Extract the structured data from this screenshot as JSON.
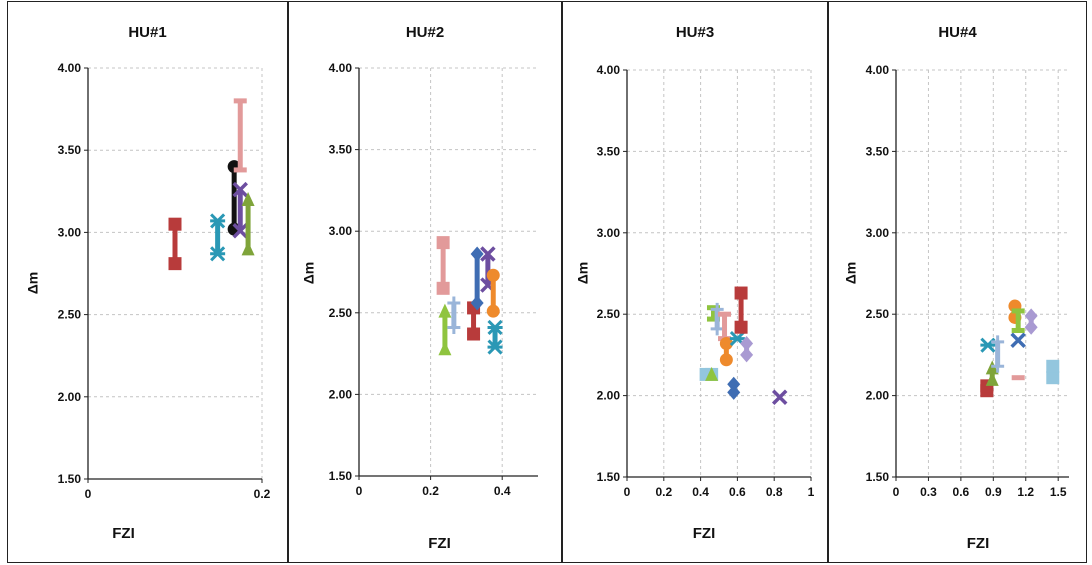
{
  "colors": {
    "red": "#b83b3b",
    "teal": "#2a98b5",
    "black": "#111111",
    "pink": "#e29a9a",
    "purple": "#6d4ea0",
    "olive": "#7fa43a",
    "green": "#8fc43f",
    "lightblue": "#9ab5d9",
    "blue": "#3f6db3",
    "orange": "#ee8a2c",
    "lavender": "#a99ad2",
    "sky": "#93c6de",
    "grid": "#c4c4c4"
  },
  "chart_data": [
    {
      "type": "scatter",
      "title": "HU#1",
      "xlabel": "FZI",
      "ylabel": "Δm",
      "xlim": [
        0,
        0.2
      ],
      "ylim": [
        1.5,
        4.0
      ],
      "xticks": [
        0,
        0.2
      ],
      "xtick_labels": [
        "0",
        "0.2"
      ],
      "yticks": [
        1.5,
        2.0,
        2.5,
        3.0,
        3.5,
        4.0
      ],
      "ytick_labels": [
        "1.50",
        "2.00",
        "2.50",
        "3.00",
        "3.50",
        "4.00"
      ],
      "grid": "dashed",
      "series": [
        {
          "marker": "square",
          "color": "red",
          "points": [
            [
              0.1,
              2.81
            ],
            [
              0.1,
              3.05
            ]
          ]
        },
        {
          "marker": "asterisk",
          "color": "teal",
          "points": [
            [
              0.149,
              2.87
            ],
            [
              0.149,
              3.07
            ]
          ]
        },
        {
          "marker": "circle",
          "color": "black",
          "points": [
            [
              0.168,
              3.02
            ],
            [
              0.168,
              3.4
            ]
          ]
        },
        {
          "marker": "dash",
          "color": "pink",
          "points": [
            [
              0.175,
              3.38
            ],
            [
              0.175,
              3.8
            ]
          ]
        },
        {
          "marker": "x",
          "color": "purple",
          "points": [
            [
              0.175,
              3.01
            ],
            [
              0.175,
              3.26
            ]
          ]
        },
        {
          "marker": "triangle",
          "color": "olive",
          "points": [
            [
              0.184,
              2.9
            ],
            [
              0.184,
              3.2
            ]
          ]
        }
      ]
    },
    {
      "type": "scatter",
      "title": "HU#2",
      "xlabel": "FZI",
      "ylabel": "Δm",
      "xlim": [
        0,
        0.5
      ],
      "ylim": [
        1.5,
        4.0
      ],
      "xticks": [
        0,
        0.2,
        0.4
      ],
      "xtick_labels": [
        "0",
        "0.2",
        "0.4"
      ],
      "yticks": [
        1.5,
        2.0,
        2.5,
        3.0,
        3.5,
        4.0
      ],
      "ytick_labels": [
        "1.50",
        "2.00",
        "2.50",
        "3.00",
        "3.50",
        "4.00"
      ],
      "grid": "dashed",
      "series": [
        {
          "marker": "square",
          "color": "pink",
          "points": [
            [
              0.235,
              2.65
            ],
            [
              0.235,
              2.93
            ]
          ]
        },
        {
          "marker": "triangle",
          "color": "green",
          "points": [
            [
              0.24,
              2.28
            ],
            [
              0.24,
              2.51
            ]
          ]
        },
        {
          "marker": "plus",
          "color": "lightblue",
          "points": [
            [
              0.265,
              2.41
            ],
            [
              0.265,
              2.56
            ]
          ]
        },
        {
          "marker": "square",
          "color": "red",
          "points": [
            [
              0.32,
              2.37
            ],
            [
              0.32,
              2.53
            ]
          ]
        },
        {
          "marker": "diamond",
          "color": "blue",
          "points": [
            [
              0.33,
              2.56
            ],
            [
              0.33,
              2.86
            ]
          ]
        },
        {
          "marker": "x",
          "color": "purple",
          "points": [
            [
              0.36,
              2.67
            ],
            [
              0.36,
              2.86
            ]
          ]
        },
        {
          "marker": "circle",
          "color": "orange",
          "points": [
            [
              0.375,
              2.51
            ],
            [
              0.375,
              2.73
            ]
          ]
        },
        {
          "marker": "asterisk",
          "color": "teal",
          "points": [
            [
              0.38,
              2.29
            ],
            [
              0.38,
              2.41
            ]
          ]
        }
      ]
    },
    {
      "type": "scatter",
      "title": "HU#3",
      "xlabel": "FZI",
      "ylabel": "Δm",
      "xlim": [
        0,
        1
      ],
      "ylim": [
        1.5,
        4.0
      ],
      "xticks": [
        0,
        0.2,
        0.4,
        0.6,
        0.8,
        1
      ],
      "xtick_labels": [
        "0",
        "0.2",
        "0.4",
        "0.6",
        "0.8",
        "1"
      ],
      "yticks": [
        1.5,
        2.0,
        2.5,
        3.0,
        3.5,
        4.0
      ],
      "ytick_labels": [
        "1.50",
        "2.00",
        "2.50",
        "3.00",
        "3.50",
        "4.00"
      ],
      "grid": "dashed",
      "series": [
        {
          "marker": "square",
          "color": "sky",
          "points": [
            [
              0.43,
              2.13
            ],
            [
              0.46,
              2.13
            ]
          ]
        },
        {
          "marker": "triangle",
          "color": "green",
          "points": [
            [
              0.46,
              2.13
            ]
          ]
        },
        {
          "marker": "dash",
          "color": "green",
          "points": [
            [
              0.47,
              2.47
            ],
            [
              0.47,
              2.54
            ]
          ]
        },
        {
          "marker": "plus",
          "color": "lightblue",
          "points": [
            [
              0.49,
              2.41
            ],
            [
              0.49,
              2.53
            ]
          ]
        },
        {
          "marker": "dash",
          "color": "pink",
          "points": [
            [
              0.53,
              2.35
            ],
            [
              0.53,
              2.5
            ]
          ]
        },
        {
          "marker": "circle",
          "color": "orange",
          "points": [
            [
              0.54,
              2.22
            ],
            [
              0.54,
              2.32
            ]
          ]
        },
        {
          "marker": "diamond",
          "color": "blue",
          "points": [
            [
              0.58,
              2.02
            ],
            [
              0.58,
              2.07
            ]
          ]
        },
        {
          "marker": "asterisk",
          "color": "teal",
          "points": [
            [
              0.6,
              2.35
            ]
          ]
        },
        {
          "marker": "square",
          "color": "red",
          "points": [
            [
              0.62,
              2.42
            ],
            [
              0.62,
              2.63
            ]
          ]
        },
        {
          "marker": "diamond",
          "color": "lavender",
          "points": [
            [
              0.65,
              2.25
            ],
            [
              0.65,
              2.32
            ]
          ]
        },
        {
          "marker": "x",
          "color": "purple",
          "points": [
            [
              0.83,
              1.99
            ]
          ]
        }
      ]
    },
    {
      "type": "scatter",
      "title": "HU#4",
      "xlabel": "FZI",
      "ylabel": "Δm",
      "xlim": [
        0,
        1.6
      ],
      "ylim": [
        1.5,
        4.0
      ],
      "xticks": [
        0,
        0.3,
        0.6,
        0.9,
        1.2,
        1.5
      ],
      "xtick_labels": [
        "0",
        "0.3",
        "0.6",
        "0.9",
        "1.2",
        "1.5"
      ],
      "yticks": [
        1.5,
        2.0,
        2.5,
        3.0,
        3.5,
        4.0
      ],
      "ytick_labels": [
        "1.50",
        "2.00",
        "2.50",
        "3.00",
        "3.50",
        "4.00"
      ],
      "grid": "dashed",
      "series": [
        {
          "marker": "square",
          "color": "red",
          "points": [
            [
              0.84,
              2.03
            ],
            [
              0.84,
              2.06
            ]
          ]
        },
        {
          "marker": "asterisk",
          "color": "teal",
          "points": [
            [
              0.85,
              2.31
            ]
          ]
        },
        {
          "marker": "triangle",
          "color": "olive",
          "points": [
            [
              0.89,
              2.1
            ],
            [
              0.89,
              2.17
            ]
          ]
        },
        {
          "marker": "plus",
          "color": "lightblue",
          "points": [
            [
              0.94,
              2.18
            ],
            [
              0.94,
              2.33
            ]
          ]
        },
        {
          "marker": "circle",
          "color": "orange",
          "points": [
            [
              1.1,
              2.48
            ],
            [
              1.1,
              2.55
            ]
          ]
        },
        {
          "marker": "x",
          "color": "blue",
          "points": [
            [
              1.13,
              2.34
            ]
          ]
        },
        {
          "marker": "dash",
          "color": "green",
          "points": [
            [
              1.13,
              2.4
            ],
            [
              1.13,
              2.52
            ]
          ]
        },
        {
          "marker": "dash",
          "color": "pink",
          "points": [
            [
              1.13,
              2.11
            ]
          ]
        },
        {
          "marker": "diamond",
          "color": "lavender",
          "points": [
            [
              1.25,
              2.42
            ],
            [
              1.25,
              2.49
            ]
          ]
        },
        {
          "marker": "square",
          "color": "sky",
          "points": [
            [
              1.45,
              2.11
            ],
            [
              1.45,
              2.18
            ]
          ]
        }
      ]
    }
  ]
}
